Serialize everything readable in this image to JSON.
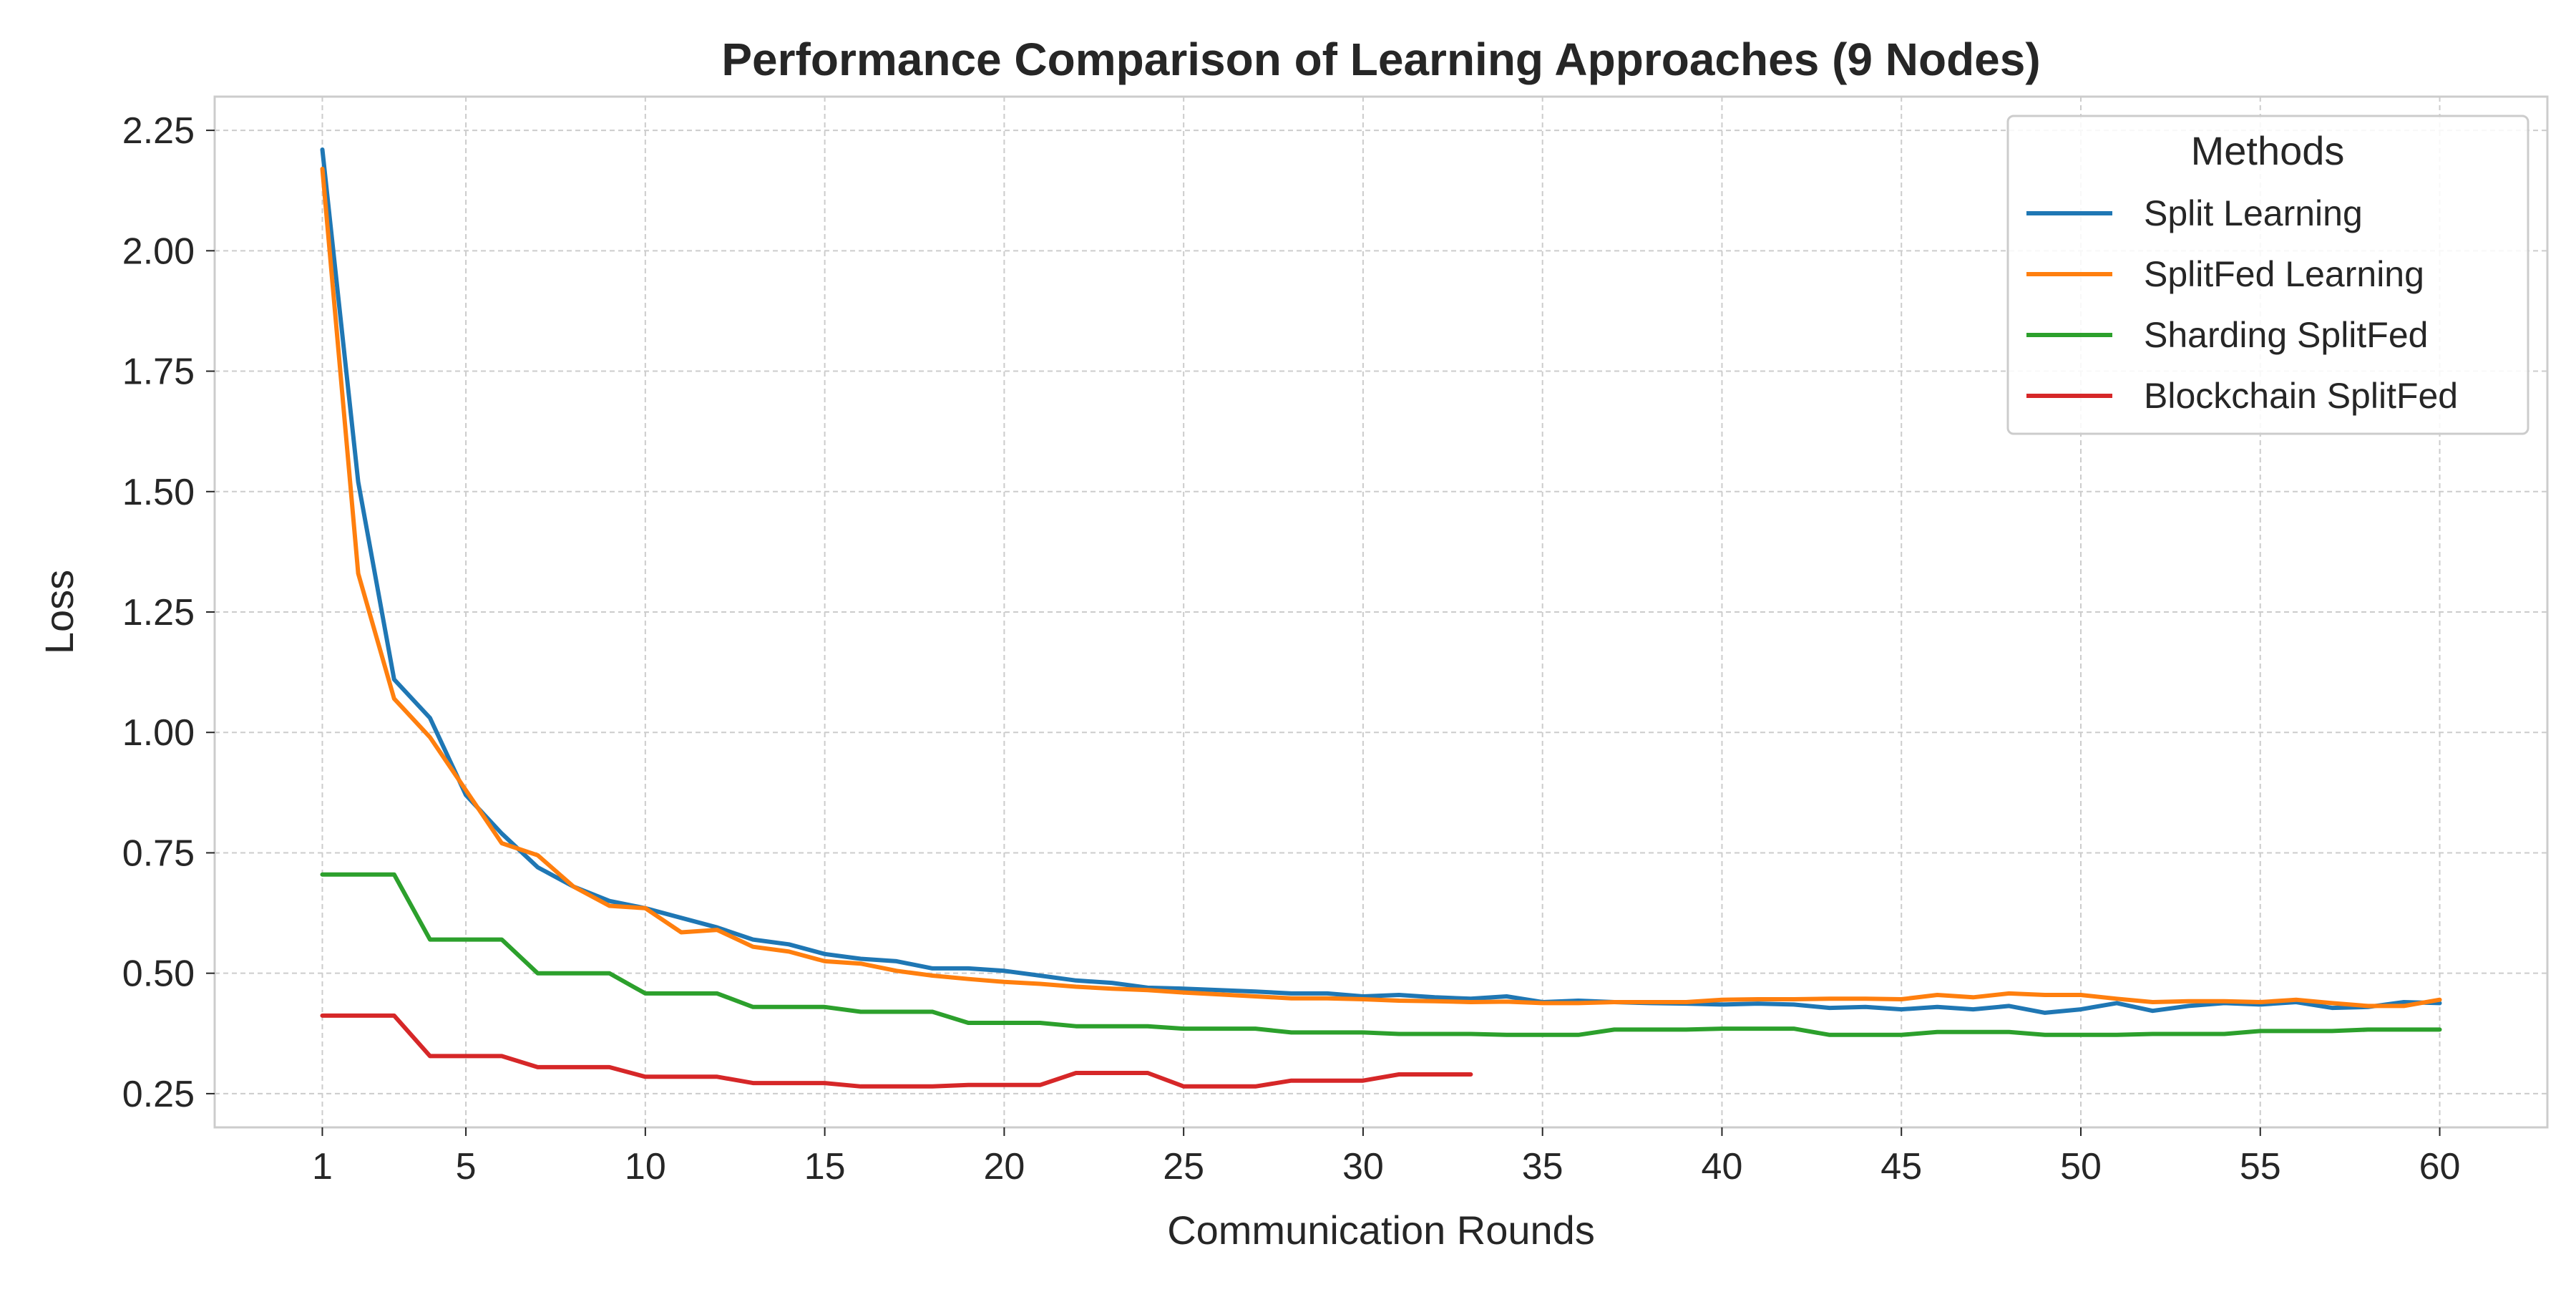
{
  "chart_data": {
    "type": "line",
    "title": "Performance Comparison of Learning Approaches (9 Nodes)",
    "xlabel": "Communication Rounds",
    "ylabel": "Loss",
    "xlim": [
      -2,
      63
    ],
    "ylim": [
      0.18,
      2.32
    ],
    "xticks": [
      1,
      5,
      10,
      15,
      20,
      25,
      30,
      35,
      40,
      45,
      50,
      55,
      60
    ],
    "yticks": [
      0.25,
      0.5,
      0.75,
      1.0,
      1.25,
      1.5,
      1.75,
      2.0,
      2.25
    ],
    "ytick_labels": [
      "0.25",
      "0.50",
      "0.75",
      "1.00",
      "1.25",
      "1.50",
      "1.75",
      "2.00",
      "2.25"
    ],
    "grid": true,
    "legend": {
      "title": "Methods",
      "placement": "top-right"
    },
    "series": [
      {
        "name": "Split Learning",
        "color": "#1f77b4",
        "x": [
          1,
          2,
          3,
          4,
          5,
          6,
          7,
          8,
          9,
          10,
          11,
          12,
          13,
          14,
          15,
          16,
          17,
          18,
          19,
          20,
          21,
          22,
          23,
          24,
          25,
          26,
          27,
          28,
          29,
          30,
          31,
          32,
          33,
          34,
          35,
          36,
          37,
          38,
          39,
          40,
          41,
          42,
          43,
          44,
          45,
          46,
          47,
          48,
          49,
          50,
          51,
          52,
          53,
          54,
          55,
          56,
          57,
          58,
          59,
          60
        ],
        "values": [
          2.21,
          1.52,
          1.11,
          1.03,
          0.87,
          0.79,
          0.72,
          0.68,
          0.65,
          0.635,
          0.615,
          0.595,
          0.57,
          0.56,
          0.54,
          0.53,
          0.525,
          0.51,
          0.51,
          0.505,
          0.495,
          0.485,
          0.48,
          0.47,
          0.468,
          0.465,
          0.462,
          0.458,
          0.458,
          0.452,
          0.455,
          0.45,
          0.447,
          0.452,
          0.44,
          0.443,
          0.44,
          0.438,
          0.437,
          0.435,
          0.437,
          0.435,
          0.428,
          0.43,
          0.425,
          0.43,
          0.425,
          0.432,
          0.418,
          0.425,
          0.438,
          0.422,
          0.432,
          0.438,
          0.435,
          0.44,
          0.428,
          0.43,
          0.44,
          0.438
        ]
      },
      {
        "name": "SplitFed Learning",
        "color": "#ff7f0e",
        "x": [
          1,
          2,
          3,
          4,
          5,
          6,
          7,
          8,
          9,
          10,
          11,
          12,
          13,
          14,
          15,
          16,
          17,
          18,
          19,
          20,
          21,
          22,
          23,
          24,
          25,
          26,
          27,
          28,
          29,
          30,
          31,
          32,
          33,
          34,
          35,
          36,
          37,
          38,
          39,
          40,
          41,
          42,
          43,
          44,
          45,
          46,
          47,
          48,
          49,
          50,
          51,
          52,
          53,
          54,
          55,
          56,
          57,
          58,
          59,
          60
        ],
        "values": [
          2.17,
          1.33,
          1.07,
          0.99,
          0.88,
          0.77,
          0.745,
          0.68,
          0.64,
          0.635,
          0.585,
          0.59,
          0.555,
          0.545,
          0.525,
          0.52,
          0.505,
          0.495,
          0.488,
          0.482,
          0.478,
          0.472,
          0.468,
          0.465,
          0.46,
          0.456,
          0.452,
          0.448,
          0.448,
          0.446,
          0.443,
          0.442,
          0.44,
          0.441,
          0.438,
          0.438,
          0.44,
          0.44,
          0.44,
          0.445,
          0.446,
          0.446,
          0.447,
          0.447,
          0.446,
          0.455,
          0.45,
          0.458,
          0.455,
          0.455,
          0.447,
          0.44,
          0.442,
          0.442,
          0.44,
          0.445,
          0.438,
          0.432,
          0.432,
          0.445
        ]
      },
      {
        "name": "Sharding SplitFed",
        "color": "#2ca02c",
        "x": [
          1,
          2,
          3,
          4,
          5,
          6,
          7,
          8,
          9,
          10,
          11,
          12,
          13,
          14,
          15,
          16,
          17,
          18,
          19,
          20,
          21,
          22,
          23,
          24,
          25,
          26,
          27,
          28,
          29,
          30,
          31,
          32,
          33,
          34,
          35,
          36,
          37,
          38,
          39,
          40,
          41,
          42,
          43,
          44,
          45,
          46,
          47,
          48,
          49,
          50,
          51,
          52,
          53,
          54,
          55,
          56,
          57,
          58,
          59,
          60
        ],
        "values": [
          0.705,
          0.705,
          0.705,
          0.57,
          0.57,
          0.57,
          0.5,
          0.5,
          0.5,
          0.458,
          0.458,
          0.458,
          0.43,
          0.43,
          0.43,
          0.42,
          0.42,
          0.42,
          0.397,
          0.397,
          0.397,
          0.39,
          0.39,
          0.39,
          0.385,
          0.385,
          0.385,
          0.377,
          0.377,
          0.377,
          0.374,
          0.374,
          0.374,
          0.372,
          0.372,
          0.372,
          0.383,
          0.383,
          0.383,
          0.385,
          0.385,
          0.385,
          0.372,
          0.372,
          0.372,
          0.378,
          0.378,
          0.378,
          0.372,
          0.372,
          0.372,
          0.374,
          0.374,
          0.374,
          0.38,
          0.38,
          0.38,
          0.383,
          0.383,
          0.383
        ]
      },
      {
        "name": "Blockchain SplitFed",
        "color": "#d62728",
        "x": [
          1,
          2,
          3,
          4,
          5,
          6,
          7,
          8,
          9,
          10,
          11,
          12,
          13,
          14,
          15,
          16,
          17,
          18,
          19,
          20,
          21,
          22,
          23,
          24,
          25,
          26,
          27,
          28,
          29,
          30,
          31,
          32,
          33
        ],
        "values": [
          0.412,
          0.412,
          0.412,
          0.328,
          0.328,
          0.328,
          0.305,
          0.305,
          0.305,
          0.285,
          0.285,
          0.285,
          0.272,
          0.272,
          0.272,
          0.265,
          0.265,
          0.265,
          0.268,
          0.268,
          0.268,
          0.293,
          0.293,
          0.293,
          0.265,
          0.265,
          0.265,
          0.277,
          0.277,
          0.277,
          0.29,
          0.29,
          0.29
        ]
      }
    ]
  }
}
